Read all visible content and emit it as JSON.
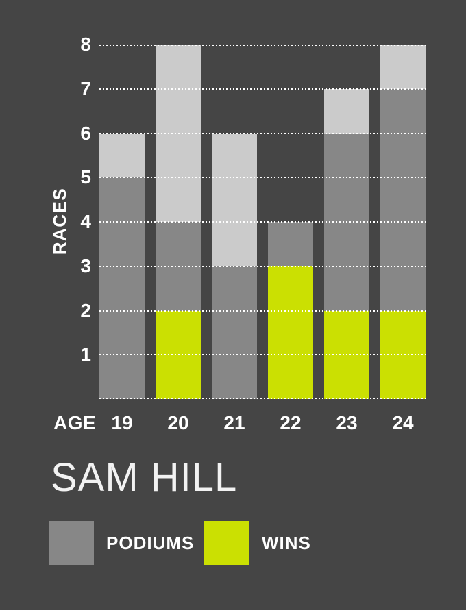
{
  "background": "#454545",
  "title": "SAM HILL",
  "legend": {
    "podiums_label": "PODIUMS",
    "wins_label": "WINS",
    "podiums_color": "#878787",
    "wins_color": "#cbe002"
  },
  "chart_data": {
    "type": "bar",
    "stacked": true,
    "title": "SAM HILL",
    "xlabel": "AGE",
    "ylabel": "RACES",
    "categories": [
      "19",
      "20",
      "21",
      "22",
      "23",
      "24"
    ],
    "series": [
      {
        "name": "WINS",
        "color": "#cbe002",
        "values": [
          0,
          2,
          0,
          3,
          2,
          2
        ]
      },
      {
        "name": "PODIUMS",
        "color": "#878787",
        "values": [
          5,
          4,
          3,
          4,
          6,
          7
        ]
      },
      {
        "name": "RACES",
        "color": "#cbcbcb",
        "values": [
          6,
          8,
          6,
          4,
          7,
          8
        ]
      }
    ],
    "bars": [
      {
        "age": "19",
        "races": 6,
        "podiums": 5,
        "wins": 0
      },
      {
        "age": "20",
        "races": 8,
        "podiums": 4,
        "wins": 2
      },
      {
        "age": "21",
        "races": 6,
        "podiums": 3,
        "wins": 0
      },
      {
        "age": "22",
        "races": 4,
        "podiums": 4,
        "wins": 3
      },
      {
        "age": "23",
        "races": 7,
        "podiums": 6,
        "wins": 2
      },
      {
        "age": "24",
        "races": 8,
        "podiums": 7,
        "wins": 2
      }
    ],
    "ylim": [
      0,
      8
    ],
    "yticks": [
      "1",
      "2",
      "3",
      "4",
      "5",
      "6",
      "7",
      "8"
    ],
    "grid": "horizontal-dotted-white",
    "legend_position": "bottom"
  }
}
